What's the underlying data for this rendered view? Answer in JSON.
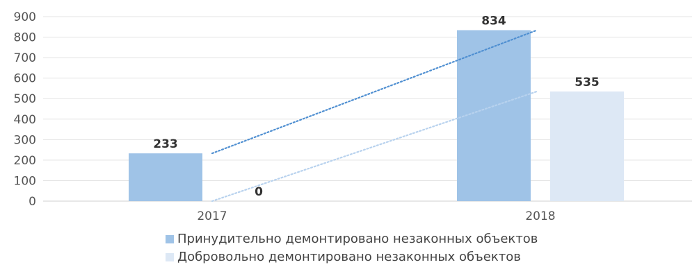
{
  "chart_data": {
    "type": "bar",
    "categories": [
      "2017",
      "2018"
    ],
    "series": [
      {
        "name": "Принудительно демонтировано незаконных объектов",
        "values": [
          233,
          834
        ],
        "color": "#9fc3e7",
        "trend_color": "#4f8fd1"
      },
      {
        "name": "Добровольно демонтировано незаконных объектов",
        "values": [
          0,
          535
        ],
        "color": "#dde8f5",
        "trend_color": "#b8d2ee"
      }
    ],
    "data_labels": [
      [
        "233",
        "834"
      ],
      [
        "0",
        "535"
      ]
    ],
    "yticks": [
      "0",
      "100",
      "200",
      "300",
      "400",
      "500",
      "600",
      "700",
      "800",
      "900"
    ],
    "ylim": [
      0,
      900
    ],
    "trendlines": "dotted linear per series",
    "grid": true,
    "legend_position": "bottom"
  }
}
